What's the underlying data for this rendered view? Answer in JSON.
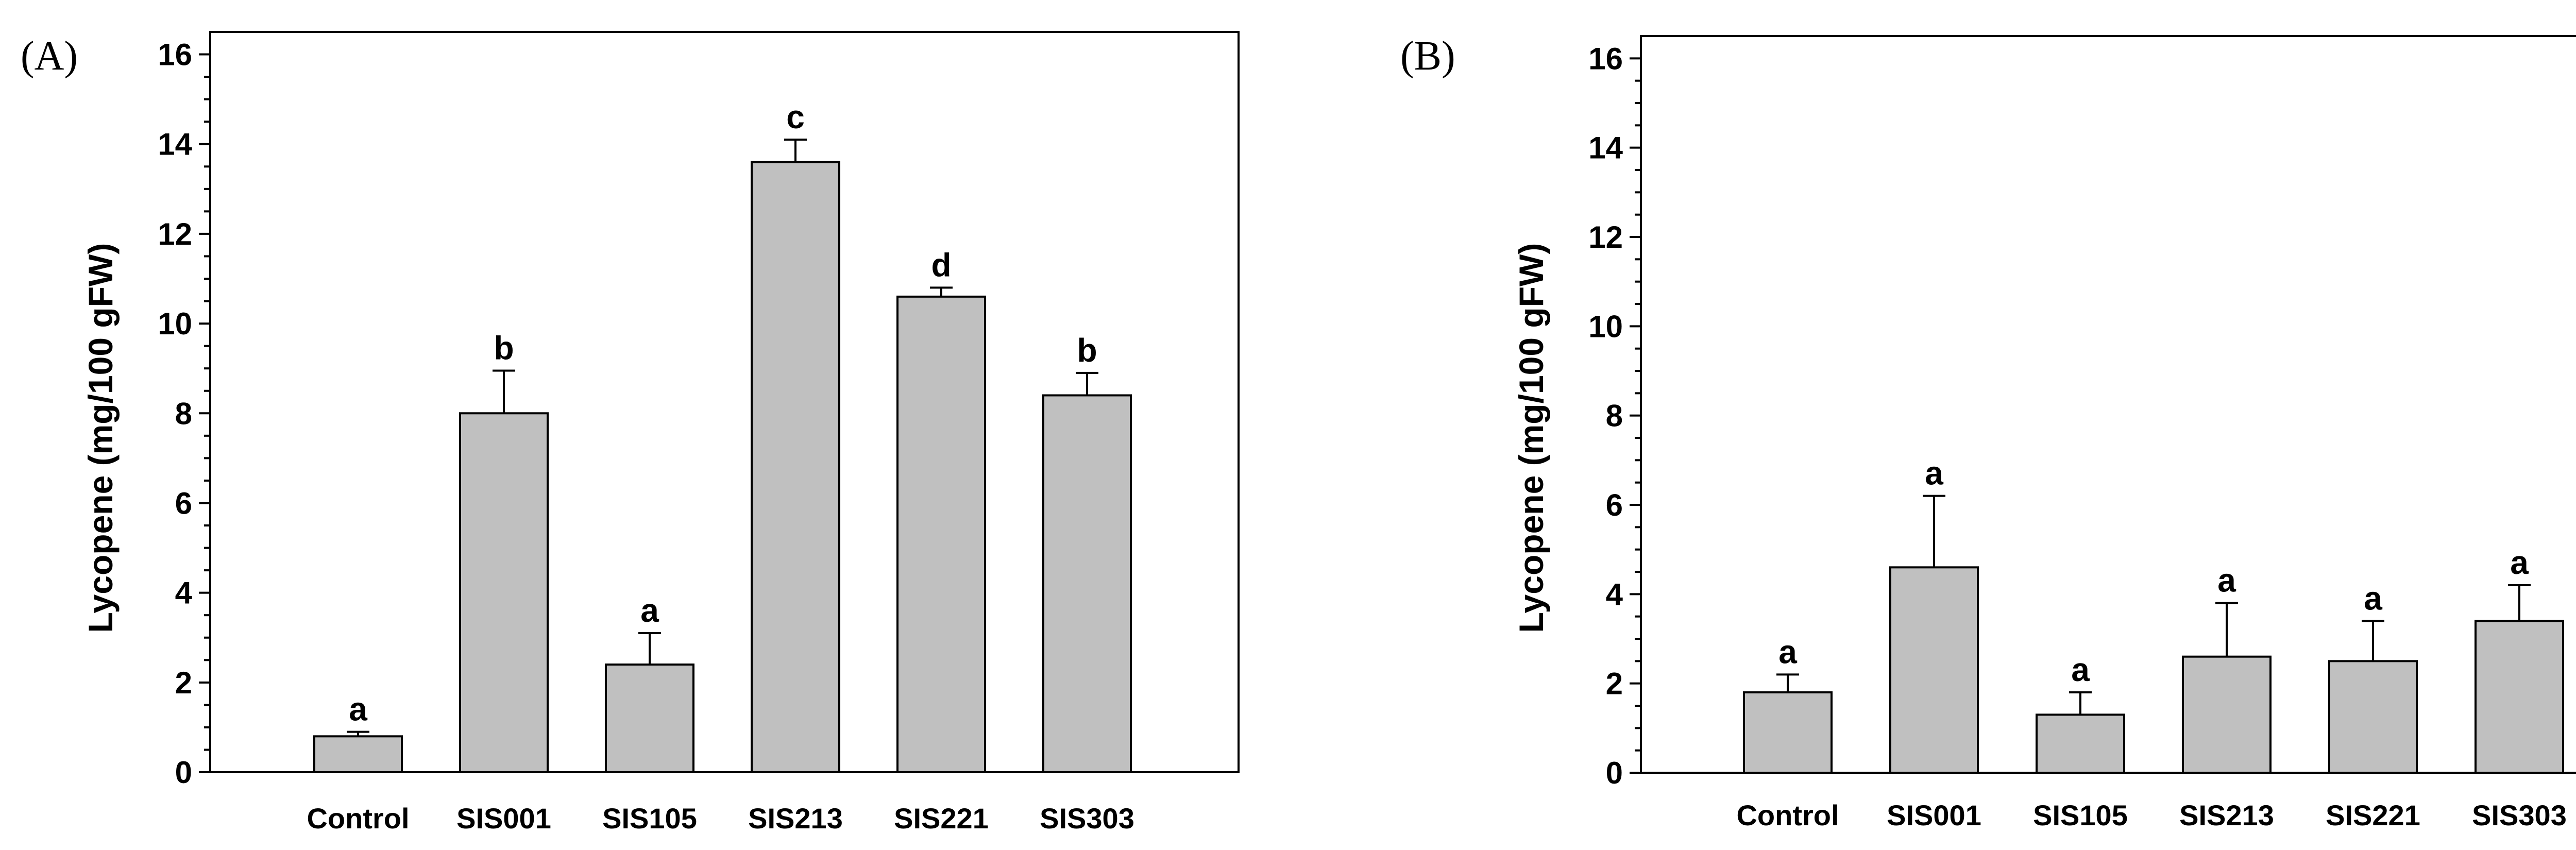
{
  "chart_data": [
    {
      "type": "bar",
      "panel_label": "(A)",
      "ylabel": "Lycopene (mg/100 gFW)",
      "xlabel": "",
      "categories": [
        "Control",
        "SIS001",
        "SIS105",
        "SIS213",
        "SIS221",
        "SIS303"
      ],
      "values": [
        0.8,
        8.0,
        2.4,
        13.6,
        10.6,
        8.4
      ],
      "errors": [
        0.1,
        0.95,
        0.7,
        0.5,
        0.2,
        0.5
      ],
      "significance": [
        "a",
        "b",
        "a",
        "c",
        "d",
        "b"
      ],
      "ylim": [
        0,
        16.5
      ],
      "yticks": [
        "0",
        "2",
        "4",
        "6",
        "8",
        "10",
        "12",
        "14",
        "16"
      ],
      "bar_color": "#c0c0c0"
    },
    {
      "type": "bar",
      "panel_label": "(B)",
      "ylabel": "Lycopene (mg/100 gFW)",
      "xlabel": "",
      "categories": [
        "Control",
        "SIS001",
        "SIS105",
        "SIS213",
        "SIS221",
        "SIS303"
      ],
      "values": [
        1.8,
        4.6,
        1.3,
        2.6,
        2.5,
        3.4
      ],
      "errors": [
        0.4,
        1.6,
        0.5,
        1.2,
        0.9,
        0.8
      ],
      "significance": [
        "a",
        "a",
        "a",
        "a",
        "a",
        "a"
      ],
      "ylim": [
        0,
        16.5
      ],
      "yticks": [
        "0",
        "2",
        "4",
        "6",
        "8",
        "10",
        "12",
        "14",
        "16"
      ],
      "bar_color": "#c0c0c0"
    }
  ]
}
